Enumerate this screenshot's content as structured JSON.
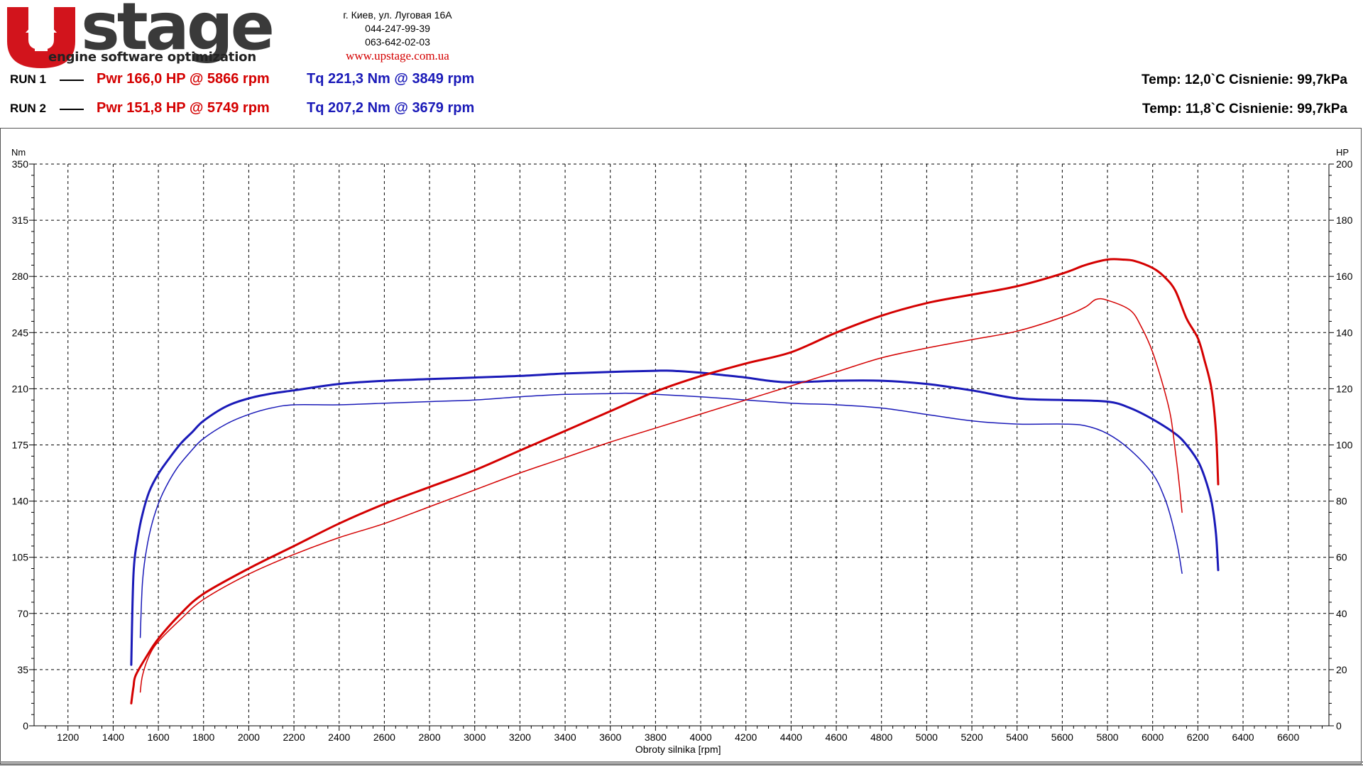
{
  "header": {
    "logo": {
      "word": "stage",
      "tagline": "engine software optimization"
    },
    "contact": {
      "address": "г. Киев, ул. Луговая 16А",
      "phone1": "044-247-99-39",
      "phone2": "063-642-02-03",
      "url": "www.upstage.com.ua"
    },
    "runs": [
      {
        "label": "RUN 1",
        "power": "Pwr  166,0 HP @ 5866 rpm",
        "torque": "Tq 221,3 Nm @ 3849 rpm",
        "ambient": "Temp: 12,0`C    Cisnienie: 99,7kPa"
      },
      {
        "label": "RUN 2",
        "power": "Pwr  151,8 HP @ 5749 rpm",
        "torque": "Tq 207,2 Nm @ 3679 rpm",
        "ambient": "Temp: 11,8`C    Cisnienie: 99,7kPa"
      }
    ]
  },
  "colors": {
    "power": "#d40000",
    "torque": "#1a1ab8",
    "logo_red": "#d2141c",
    "logo_grey": "#3a3a3a",
    "grid": "#000000"
  },
  "chart_data": {
    "type": "line",
    "title": "",
    "xlabel": "Obroty silnika [rpm]",
    "y_left_label": "Nm",
    "y_right_label": "HP",
    "xlim": [
      1050,
      6780
    ],
    "xticks": [
      1200,
      1400,
      1600,
      1800,
      2000,
      2200,
      2400,
      2600,
      2800,
      3000,
      3200,
      3400,
      3600,
      3800,
      4000,
      4200,
      4400,
      4600,
      4800,
      5000,
      5200,
      5400,
      5600,
      5800,
      6000,
      6200,
      6400,
      6600
    ],
    "y_left_lim": [
      0,
      350
    ],
    "y_left_ticks": [
      0,
      35,
      70,
      105,
      140,
      175,
      210,
      245,
      280,
      315,
      350
    ],
    "y_right_lim": [
      0,
      200
    ],
    "y_right_ticks": [
      0,
      20,
      40,
      60,
      80,
      100,
      120,
      140,
      160,
      180,
      200
    ],
    "grid": true,
    "series": [
      {
        "name": "RUN 1",
        "quantity": "torque",
        "axis": "left",
        "width": 3,
        "x": [
          1480,
          1490,
          1510,
          1530,
          1560,
          1600,
          1650,
          1700,
          1750,
          1800,
          1900,
          2000,
          2100,
          2200,
          2400,
          2600,
          2800,
          3000,
          3200,
          3400,
          3600,
          3800,
          3849,
          3900,
          4000,
          4100,
          4200,
          4300,
          4400,
          4600,
          4800,
          5000,
          5200,
          5400,
          5600,
          5800,
          5900,
          6000,
          6100,
          6150,
          6200,
          6230,
          6260,
          6280,
          6290
        ],
        "y": [
          38,
          95,
          118,
          132,
          146,
          157,
          167,
          176,
          183,
          190,
          199,
          204,
          207,
          209,
          213,
          215,
          216,
          217,
          218,
          219.5,
          220.5,
          221.2,
          221.3,
          221,
          220,
          218.5,
          217,
          215,
          214,
          215,
          215,
          213,
          209,
          204,
          203,
          202,
          198,
          191,
          182,
          175,
          165,
          155,
          140,
          120,
          97
        ]
      },
      {
        "name": "RUN 2",
        "quantity": "torque",
        "axis": "left",
        "width": 1.5,
        "x": [
          1520,
          1530,
          1550,
          1580,
          1620,
          1680,
          1750,
          1800,
          1900,
          2000,
          2100,
          2200,
          2400,
          2600,
          2800,
          3000,
          3200,
          3400,
          3600,
          3679,
          3800,
          4000,
          4200,
          4400,
          4600,
          4800,
          5000,
          5200,
          5400,
          5600,
          5700,
          5800,
          5900,
          6000,
          6050,
          6080,
          6110,
          6130
        ],
        "y": [
          55,
          90,
          112,
          130,
          145,
          160,
          172,
          179,
          188,
          194,
          198,
          200,
          200,
          201,
          202,
          203,
          205,
          206.5,
          207,
          207.2,
          206.5,
          205,
          203,
          201,
          200,
          198,
          194,
          190,
          188,
          188,
          187,
          182,
          172,
          157,
          143,
          130,
          112,
          95
        ]
      },
      {
        "name": "RUN 1",
        "quantity": "power",
        "axis": "right",
        "width": 3,
        "x": [
          1480,
          1490,
          1500,
          1550,
          1600,
          1700,
          1800,
          2000,
          2200,
          2400,
          2600,
          2800,
          3000,
          3200,
          3400,
          3600,
          3800,
          4000,
          4200,
          4400,
          4600,
          4800,
          5000,
          5200,
          5400,
          5600,
          5700,
          5800,
          5866,
          5920,
          6000,
          6050,
          6100,
          6150,
          6200,
          6230,
          6260,
          6280,
          6290
        ],
        "y": [
          8,
          14,
          18,
          25,
          31,
          40,
          47,
          56,
          64,
          72,
          79,
          85,
          91,
          98,
          105,
          112,
          119,
          124.5,
          129,
          133,
          140,
          146,
          150.5,
          153.5,
          156.5,
          161,
          164,
          166,
          166,
          165.5,
          163,
          160,
          155,
          145,
          138,
          130,
          120,
          105,
          86
        ]
      },
      {
        "name": "RUN 2",
        "quantity": "power",
        "axis": "right",
        "width": 1.5,
        "x": [
          1520,
          1530,
          1560,
          1600,
          1700,
          1800,
          2000,
          2200,
          2400,
          2600,
          2800,
          3000,
          3200,
          3400,
          3600,
          3800,
          4000,
          4200,
          4400,
          4600,
          4800,
          5000,
          5200,
          5400,
          5600,
          5700,
          5749,
          5800,
          5900,
          5950,
          6000,
          6050,
          6080,
          6100,
          6115,
          6130
        ],
        "y": [
          12,
          18,
          25,
          30,
          38,
          45,
          54,
          61,
          67,
          72,
          78,
          84,
          90,
          95.5,
          101,
          106,
          111,
          116,
          121,
          126,
          131,
          134.5,
          137.5,
          140.5,
          145.5,
          149,
          151.8,
          151.5,
          148,
          142,
          133,
          120,
          110,
          98,
          88,
          76
        ]
      }
    ]
  }
}
